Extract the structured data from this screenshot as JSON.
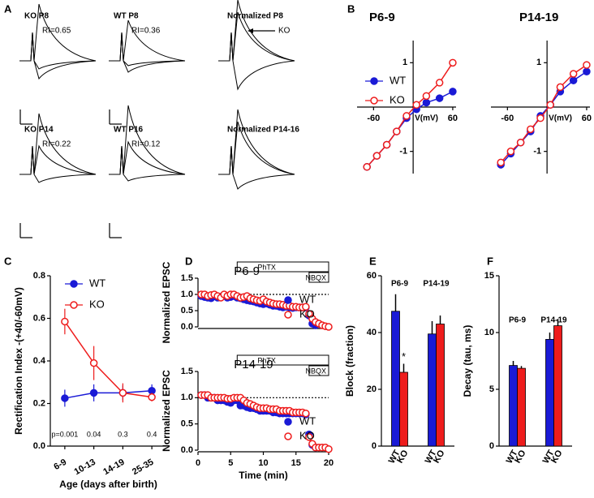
{
  "panel_labels": [
    "A",
    "B",
    "C",
    "D",
    "E",
    "F"
  ],
  "traces": [
    {
      "title": "KO P8",
      "label": "RI=0.65"
    },
    {
      "title": "WT P8",
      "label": "RI=0.36"
    },
    {
      "title": "Normalized P8",
      "label": "KO"
    },
    {
      "title": "KO P14",
      "label": "RI=0.22"
    },
    {
      "title": "WT P16",
      "label": "RI=0.12"
    },
    {
      "title": "Normalized P14-16"
    }
  ],
  "chart_data": [
    {
      "type": "line",
      "title": "P6-9",
      "x_label": "V(mV)",
      "x": [
        -70,
        -55,
        -40,
        -25,
        -10,
        5,
        20,
        40,
        60
      ],
      "series": [
        {
          "name": "WT",
          "color": "#1a1ad6",
          "marker": "filled",
          "values": [
            -1.35,
            -1.1,
            -0.85,
            -0.55,
            -0.25,
            -0.05,
            0.1,
            0.2,
            0.35
          ]
        },
        {
          "name": "KO",
          "color": "#ee1c1c",
          "marker": "open",
          "values": [
            -1.35,
            -1.1,
            -0.85,
            -0.55,
            -0.2,
            0.05,
            0.25,
            0.55,
            1.0
          ]
        }
      ],
      "xlim": [
        -85,
        65
      ],
      "xticks": [
        -60,
        60
      ],
      "ylim": [
        -1.5,
        1.5
      ],
      "yticks": [
        -1,
        1
      ],
      "legend": "left"
    },
    {
      "type": "line",
      "title": "P14-19",
      "x_label": "V(mV)",
      "x": [
        -70,
        -55,
        -40,
        -25,
        -10,
        5,
        20,
        40,
        60
      ],
      "series": [
        {
          "name": "WT",
          "color": "#1a1ad6",
          "marker": "filled",
          "values": [
            -1.3,
            -1.05,
            -0.8,
            -0.55,
            -0.2,
            0.05,
            0.35,
            0.6,
            0.8
          ]
        },
        {
          "name": "KO",
          "color": "#ee1c1c",
          "marker": "open",
          "values": [
            -1.25,
            -1.0,
            -0.8,
            -0.5,
            -0.25,
            0.05,
            0.45,
            0.75,
            0.95
          ]
        }
      ],
      "xlim": [
        -85,
        65
      ],
      "xticks": [
        -60,
        60
      ],
      "ylim": [
        -1.5,
        1.5
      ],
      "yticks": [
        -1,
        1
      ]
    },
    {
      "type": "line",
      "x_label": "Age (days after birth)",
      "y_label": "Rectification Index -(+40/-60mV)",
      "categories": [
        "6-9",
        "10-13",
        "14-19",
        "25-35"
      ],
      "series": [
        {
          "name": "WT",
          "color": "#1a1ad6",
          "marker": "filled",
          "values": [
            0.225,
            0.25,
            0.25,
            0.26
          ],
          "errors": [
            0.04,
            0.04,
            0.035,
            0.03
          ]
        },
        {
          "name": "KO",
          "color": "#ee1c1c",
          "marker": "open",
          "values": [
            0.585,
            0.39,
            0.25,
            0.23
          ],
          "errors": [
            0.06,
            0.08,
            0.045,
            0.02
          ]
        }
      ],
      "annotations": [
        "p=0.001",
        "0.04",
        "0.3",
        "0.4"
      ],
      "ylim": [
        0,
        0.8
      ],
      "yticks": [
        {
          "value": 0,
          "label": "0.0"
        },
        0.2,
        0.4,
        0.6,
        0.8
      ],
      "legend": "upper left"
    },
    {
      "type": "scatter",
      "title": "P6-9",
      "y_label": "Normalized EPSC",
      "x": [
        0.5,
        1,
        1.5,
        2,
        2.5,
        3,
        3.5,
        4,
        4.5,
        5,
        5.5,
        6,
        6.5,
        7,
        7.5,
        8,
        8.5,
        9,
        9.5,
        10,
        10.5,
        11,
        11.5,
        12,
        12.5,
        13,
        13.5,
        14,
        14.5,
        15,
        15.5,
        16,
        16.5,
        17,
        17.5,
        18,
        18.5,
        19,
        19.5,
        20
      ],
      "series": [
        {
          "name": "WT",
          "color": "#1a1ad6",
          "marker": "filled",
          "values": [
            0.95,
            0.92,
            0.9,
            0.88,
            0.95,
            0.9,
            0.93,
            0.98,
            0.9,
            0.92,
            0.95,
            0.9,
            0.88,
            0.85,
            0.82,
            0.8,
            0.78,
            0.75,
            0.72,
            0.7,
            0.72,
            0.68,
            0.65,
            0.65,
            0.62,
            0.6,
            0.62,
            0.6,
            0.58,
            0.6,
            0.6,
            0.6,
            0.6,
            0.35,
            0.1,
            0.05,
            null,
            null,
            null,
            null
          ]
        },
        {
          "name": "KO",
          "color": "#ee1c1c",
          "marker": "open",
          "values": [
            1.0,
            1.0,
            0.95,
            0.98,
            1.0,
            0.95,
            0.9,
            1.0,
            0.95,
            1.0,
            1.0,
            0.95,
            0.9,
            0.92,
            0.95,
            0.88,
            0.85,
            0.82,
            0.8,
            0.85,
            0.78,
            0.75,
            0.72,
            0.7,
            0.7,
            0.68,
            0.65,
            0.65,
            0.62,
            0.62,
            0.6,
            0.6,
            0.62,
            0.4,
            0.25,
            0.15,
            0.1,
            0.05,
            0.02,
            0.0
          ]
        }
      ],
      "annotations": [
        {
          "label": "PhTX",
          "start": 6,
          "end": 20
        },
        {
          "label": "NBQX",
          "start": 17,
          "end": 20
        }
      ],
      "reference_line": 1,
      "xlim": [
        0,
        20
      ],
      "ylim": [
        0,
        1.5
      ],
      "yticks": [
        {
          "value": 0,
          "label": "0.0"
        },
        0.5,
        {
          "value": 1,
          "label": "1.0"
        },
        1.5
      ]
    },
    {
      "type": "scatter",
      "title": "P14-19",
      "y_label": "Normalized EPSC",
      "x_label": "Time (min)",
      "x": [
        0.5,
        1,
        1.5,
        2,
        2.5,
        3,
        3.5,
        4,
        4.5,
        5,
        5.5,
        6,
        6.5,
        7,
        7.5,
        8,
        8.5,
        9,
        9.5,
        10,
        10.5,
        11,
        11.5,
        12,
        12.5,
        13,
        13.5,
        14,
        14.5,
        15,
        15.5,
        16,
        16.5,
        17,
        17.5,
        18,
        18.5,
        19,
        19.5,
        20
      ],
      "series": [
        {
          "name": "WT",
          "color": "#1a1ad6",
          "marker": "filled",
          "values": [
            1.05,
            1.05,
            1.0,
            1.0,
            1.0,
            0.95,
            0.95,
            0.95,
            0.92,
            0.9,
            0.95,
            0.95,
            0.85,
            0.85,
            0.82,
            0.8,
            0.8,
            0.78,
            0.75,
            0.75,
            0.75,
            0.75,
            0.72,
            0.72,
            0.7,
            0.7,
            0.7,
            0.7,
            0.7,
            0.7,
            0.7,
            0.7,
            0.68,
            0.3,
            0.1,
            0.05,
            null,
            null,
            null,
            null
          ]
        },
        {
          "name": "KO",
          "color": "#ee1c1c",
          "marker": "open",
          "values": [
            1.05,
            1.05,
            1.05,
            1.0,
            1.0,
            1.0,
            1.0,
            1.0,
            0.98,
            0.98,
            1.0,
            1.0,
            1.0,
            0.95,
            0.9,
            0.88,
            0.85,
            0.82,
            0.8,
            0.8,
            0.8,
            0.78,
            0.78,
            0.78,
            0.75,
            0.75,
            0.75,
            0.75,
            0.72,
            0.72,
            0.72,
            0.72,
            0.7,
            0.25,
            0.12,
            0.05,
            0.05,
            0.05,
            0.05,
            0.02
          ]
        }
      ],
      "annotations": [
        {
          "label": "PhTX",
          "start": 6,
          "end": 20
        },
        {
          "label": "NBQX",
          "start": 17,
          "end": 20
        }
      ],
      "reference_line": 1,
      "xlim": [
        0,
        20
      ],
      "xticks": [
        0,
        5,
        10,
        15,
        20
      ],
      "ylim": [
        0,
        1.5
      ],
      "yticks": [
        {
          "value": 0,
          "label": "0.0"
        },
        0.5,
        {
          "value": 1,
          "label": "1.0"
        },
        1.5
      ]
    },
    {
      "type": "bar",
      "y_label": "Block (fraction)",
      "categories": [
        "P6-9",
        "P14-19"
      ],
      "series": [
        {
          "name": "WT",
          "color": "#1a1ad6",
          "values": [
            47.5,
            39.5
          ],
          "errors": [
            6,
            4.5
          ]
        },
        {
          "name": "KO",
          "color": "#ee1c1c",
          "values": [
            26,
            43
          ],
          "errors": [
            3,
            3
          ]
        }
      ],
      "annotations": [
        "*"
      ],
      "ylim": [
        0,
        60
      ],
      "yticks": [
        0,
        20,
        40,
        60
      ]
    },
    {
      "type": "bar",
      "y_label": "Decay (tau, ms)",
      "categories": [
        "P6-9",
        "P14-19"
      ],
      "series": [
        {
          "name": "WT",
          "color": "#1a1ad6",
          "values": [
            7.1,
            9.4
          ],
          "errors": [
            0.4,
            0.6
          ]
        },
        {
          "name": "KO",
          "color": "#ee1c1c",
          "values": [
            6.85,
            10.6
          ],
          "errors": [
            0.2,
            0.6
          ]
        }
      ],
      "ylim": [
        0,
        15
      ],
      "yticks": [
        0,
        5,
        10,
        15
      ]
    }
  ]
}
